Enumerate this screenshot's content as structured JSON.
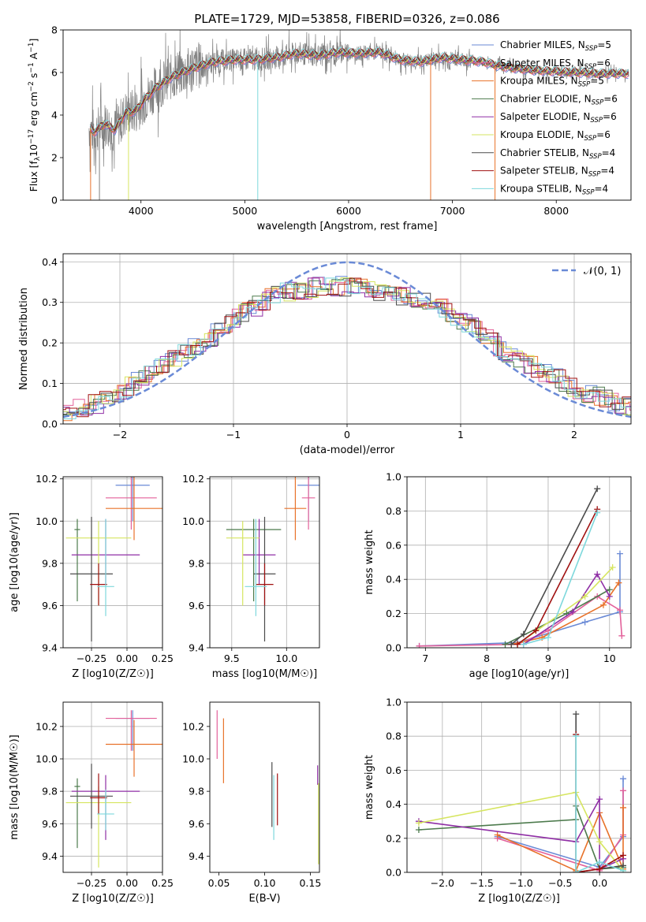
{
  "figure": {
    "title": "PLATE=1729, MJD=53858, FIBERID=0326, z=0.086"
  },
  "chart_data": [
    {
      "id": "spectrum",
      "type": "line",
      "xlabel": "wavelength [Angstrom, rest frame]",
      "ylabel": "Flux [fλ10⁻¹⁷ erg cm⁻² s⁻¹ A⁻¹]",
      "xlim": [
        3250,
        8720
      ],
      "ylim": [
        0,
        8
      ],
      "xticks": [
        4000,
        5000,
        6000,
        7000,
        8000
      ],
      "yticks": [
        0,
        2,
        4,
        6,
        8
      ],
      "legend_position": "upper-right",
      "continuum": {
        "x": [
          3500,
          3550,
          3650,
          3750,
          3850,
          3950,
          4050,
          4150,
          4300,
          4500,
          4700,
          4900,
          5100,
          5300,
          5500,
          5700,
          5900,
          6100,
          6300,
          6500,
          6700,
          6900,
          7100,
          7300,
          7450,
          7600,
          7800,
          8000,
          8200,
          8400,
          8700
        ],
        "y": [
          3.4,
          3.2,
          3.6,
          3.3,
          4.1,
          4.2,
          4.8,
          5.3,
          5.8,
          6.2,
          6.5,
          6.6,
          6.6,
          6.7,
          6.9,
          6.8,
          6.95,
          6.9,
          6.95,
          6.6,
          6.5,
          6.7,
          6.6,
          6.5,
          6.3,
          6.2,
          6.1,
          6.05,
          6.0,
          5.95,
          5.95
        ]
      },
      "series": [
        {
          "name": "Chabrier MILES, N_SSP=5",
          "color": "#6a8ad6"
        },
        {
          "name": "Salpeter MILES, N_SSP=6",
          "color": "#e3609a"
        },
        {
          "name": "Kroupa MILES, N_SSP=5",
          "color": "#e8722a"
        },
        {
          "name": "Chabrier ELODIE, N_SSP=6",
          "color": "#4c7a4c"
        },
        {
          "name": "Salpeter ELODIE, N_SSP=6",
          "color": "#8f2fa5"
        },
        {
          "name": "Kroupa ELODIE, N_SSP=6",
          "color": "#d6e560"
        },
        {
          "name": "Chabrier STELIB, N_SSP=4",
          "color": "#4b4b4b"
        },
        {
          "name": "Salpeter STELIB, N_SSP=4",
          "color": "#a01010"
        },
        {
          "name": "Kroupa STELIB, N_SSP=4",
          "color": "#7ed8dc"
        }
      ]
    },
    {
      "id": "residuals",
      "type": "histogram",
      "xlabel": "(data-model)/error",
      "ylabel": "Normed distribution",
      "xlim": [
        -2.5,
        2.5
      ],
      "ylim": [
        0,
        0.42
      ],
      "xticks": [
        -2,
        -1,
        0,
        1,
        2
      ],
      "yticks": [
        0.0,
        0.1,
        0.2,
        0.3,
        0.4
      ],
      "grid": true,
      "legend_position": "upper-right",
      "reference_curve": {
        "name": "N(0,1)",
        "type": "gaussian",
        "mean": 0,
        "sigma": 1,
        "color": "#6a8ad6"
      },
      "envelope": [
        [
          -2.5,
          0.03
        ],
        [
          -2.2,
          0.05
        ],
        [
          -2.0,
          0.08
        ],
        [
          -1.8,
          0.11
        ],
        [
          -1.6,
          0.15
        ],
        [
          -1.4,
          0.18
        ],
        [
          -1.2,
          0.21
        ],
        [
          -1.0,
          0.26
        ],
        [
          -0.8,
          0.29
        ],
        [
          -0.6,
          0.32
        ],
        [
          -0.4,
          0.33
        ],
        [
          -0.2,
          0.34
        ],
        [
          0.0,
          0.34
        ],
        [
          0.2,
          0.33
        ],
        [
          0.4,
          0.32
        ],
        [
          0.6,
          0.31
        ],
        [
          0.8,
          0.29
        ],
        [
          1.0,
          0.26
        ],
        [
          1.2,
          0.22
        ],
        [
          1.4,
          0.18
        ],
        [
          1.6,
          0.15
        ],
        [
          1.8,
          0.12
        ],
        [
          2.0,
          0.09
        ],
        [
          2.2,
          0.07
        ],
        [
          2.5,
          0.04
        ]
      ]
    },
    {
      "id": "age-vs-Z",
      "type": "errorbar",
      "xlabel": "Z [log10(Z/Z☉)]",
      "ylabel": "age  [log10(age/yr)]",
      "xlim": [
        -0.45,
        0.25
      ],
      "ylim": [
        9.4,
        10.21
      ],
      "xticks": [
        -0.25,
        0.0,
        0.25
      ],
      "yticks": [
        9.4,
        9.6,
        9.8,
        10.0,
        10.2
      ],
      "grid": true,
      "points": [
        {
          "series": 0,
          "x": 0.04,
          "xerr": 0.12,
          "y": 10.17,
          "yerr": [
            0.17,
            0.04
          ]
        },
        {
          "series": 1,
          "x": 0.03,
          "xerr": 0.18,
          "y": 10.11,
          "yerr": [
            0.15,
            0.1
          ]
        },
        {
          "series": 2,
          "x": 0.05,
          "xerr": 0.2,
          "y": 10.06,
          "yerr": [
            0.15,
            0.15
          ]
        },
        {
          "series": 3,
          "x": -0.35,
          "xerr": 0.02,
          "y": 9.96,
          "yerr": [
            0.34,
            0.05
          ]
        },
        {
          "series": 4,
          "x": -0.15,
          "xerr": 0.24,
          "y": 9.84,
          "yerr": [
            0.14,
            0.17
          ]
        },
        {
          "series": 5,
          "x": -0.2,
          "xerr": 0.23,
          "y": 9.92,
          "yerr": [
            0.32,
            0.08
          ]
        },
        {
          "series": 6,
          "x": -0.25,
          "xerr": 0.15,
          "y": 9.75,
          "yerr": [
            0.32,
            0.27
          ]
        },
        {
          "series": 7,
          "x": -0.2,
          "xerr": 0.06,
          "y": 9.7,
          "yerr": [
            0.1,
            0.1
          ]
        },
        {
          "series": 8,
          "x": -0.15,
          "xerr": 0.06,
          "y": 9.69,
          "yerr": [
            0.14,
            0.32
          ]
        }
      ]
    },
    {
      "id": "age-vs-mass",
      "type": "errorbar",
      "xlabel": "mass [log10(M/M☉)]",
      "ylabel": "",
      "xlim": [
        9.3,
        10.3
      ],
      "ylim": [
        9.4,
        10.21
      ],
      "xticks": [
        9.5,
        10.0
      ],
      "yticks": [
        9.4,
        9.6,
        9.8,
        10.0,
        10.2
      ],
      "grid": true,
      "points": [
        {
          "series": 0,
          "x": 10.2,
          "xerr": 0.1,
          "y": 10.17,
          "yerr": [
            0.17,
            0.04
          ]
        },
        {
          "series": 1,
          "x": 10.2,
          "xerr": 0.06,
          "y": 10.11,
          "yerr": [
            0.15,
            0.1
          ]
        },
        {
          "series": 2,
          "x": 10.08,
          "xerr": 0.1,
          "y": 10.06,
          "yerr": [
            0.15,
            0.15
          ]
        },
        {
          "series": 3,
          "x": 9.7,
          "xerr": 0.25,
          "y": 9.96,
          "yerr": [
            0.34,
            0.05
          ]
        },
        {
          "series": 4,
          "x": 9.75,
          "xerr": 0.15,
          "y": 9.84,
          "yerr": [
            0.14,
            0.17
          ]
        },
        {
          "series": 5,
          "x": 9.6,
          "xerr": 0.15,
          "y": 9.92,
          "yerr": [
            0.32,
            0.08
          ]
        },
        {
          "series": 6,
          "x": 9.8,
          "xerr": 0.1,
          "y": 9.75,
          "yerr": [
            0.32,
            0.27
          ]
        },
        {
          "series": 7,
          "x": 9.8,
          "xerr": 0.08,
          "y": 9.7,
          "yerr": [
            0.1,
            0.1
          ]
        },
        {
          "series": 8,
          "x": 9.72,
          "xerr": 0.1,
          "y": 9.69,
          "yerr": [
            0.14,
            0.32
          ]
        }
      ]
    },
    {
      "id": "massweight-vs-age",
      "type": "line",
      "xlabel": "age  [log10(age/yr)]",
      "ylabel": "mass weight",
      "xlim": [
        6.7,
        10.35
      ],
      "ylim": [
        0,
        1.0
      ],
      "xticks": [
        7,
        8,
        9,
        10
      ],
      "yticks": [
        0.0,
        0.2,
        0.4,
        0.6,
        0.8,
        1.0
      ],
      "grid": true,
      "series": [
        {
          "series": 0,
          "x": [
            6.9,
            8.5,
            9.6,
            10.17,
            10.17
          ],
          "y": [
            0.01,
            0.03,
            0.15,
            0.21,
            0.55
          ]
        },
        {
          "series": 1,
          "x": [
            6.9,
            8.5,
            9.0,
            9.8,
            10.17,
            10.2
          ],
          "y": [
            0.01,
            0.02,
            0.1,
            0.3,
            0.22,
            0.07
          ]
        },
        {
          "series": 2,
          "x": [
            8.4,
            8.9,
            9.9,
            10.15
          ],
          "y": [
            0.02,
            0.06,
            0.25,
            0.38
          ]
        },
        {
          "series": 3,
          "x": [
            8.3,
            9.3,
            10.0
          ],
          "y": [
            0.02,
            0.2,
            0.34
          ]
        },
        {
          "series": 4,
          "x": [
            8.6,
            9.4,
            9.8,
            10.0
          ],
          "y": [
            0.02,
            0.21,
            0.43,
            0.3
          ]
        },
        {
          "series": 5,
          "x": [
            8.5,
            9.6,
            10.05
          ],
          "y": [
            0.02,
            0.3,
            0.47
          ]
        },
        {
          "series": 6,
          "x": [
            8.4,
            8.6,
            9.8
          ],
          "y": [
            0.02,
            0.08,
            0.93
          ]
        },
        {
          "series": 7,
          "x": [
            8.5,
            8.8,
            9.8
          ],
          "y": [
            0.02,
            0.1,
            0.81
          ]
        },
        {
          "series": 8,
          "x": [
            8.6,
            9.0,
            9.8
          ],
          "y": [
            0.02,
            0.06,
            0.79
          ]
        }
      ]
    },
    {
      "id": "mass-vs-Z",
      "type": "errorbar",
      "xlabel": "Z [log10(Z/Z☉)]",
      "ylabel": "mass [log10(M/M☉)]",
      "xlim": [
        -0.45,
        0.25
      ],
      "ylim": [
        9.3,
        10.35
      ],
      "xticks": [
        -0.25,
        0.0,
        0.25
      ],
      "yticks": [
        9.4,
        9.6,
        9.8,
        10.0,
        10.2
      ],
      "grid": true,
      "points": [
        {
          "series": 0,
          "x": 0.04,
          "xerr": 0.12,
          "y": 10.25,
          "yerr": [
            0.2,
            0.05
          ]
        },
        {
          "series": 1,
          "x": 0.03,
          "xerr": 0.18,
          "y": 10.25,
          "yerr": [
            0.2,
            0.05
          ]
        },
        {
          "series": 2,
          "x": 0.05,
          "xerr": 0.2,
          "y": 10.09,
          "yerr": [
            0.2,
            0.15
          ]
        },
        {
          "series": 3,
          "x": -0.35,
          "xerr": 0.02,
          "y": 9.83,
          "yerr": [
            0.38,
            0.05
          ]
        },
        {
          "series": 4,
          "x": -0.15,
          "xerr": 0.24,
          "y": 9.8,
          "yerr": [
            0.3,
            0.1
          ]
        },
        {
          "series": 5,
          "x": -0.2,
          "xerr": 0.23,
          "y": 9.73,
          "yerr": [
            0.4,
            0.1
          ]
        },
        {
          "series": 6,
          "x": -0.25,
          "xerr": 0.15,
          "y": 9.77,
          "yerr": [
            0.2,
            0.2
          ]
        },
        {
          "series": 7,
          "x": -0.2,
          "xerr": 0.06,
          "y": 9.76,
          "yerr": [
            0.1,
            0.15
          ]
        },
        {
          "series": 8,
          "x": -0.15,
          "xerr": 0.06,
          "y": 9.66,
          "yerr": [
            0.1,
            0.15
          ]
        }
      ]
    },
    {
      "id": "mass-vs-ebv",
      "type": "errorbar",
      "xlabel": "E(B-V)",
      "ylabel": "",
      "xlim": [
        0.04,
        0.16
      ],
      "ylim": [
        9.3,
        10.35
      ],
      "xticks": [
        0.05,
        0.1,
        0.15
      ],
      "yticks": [
        9.4,
        9.6,
        9.8,
        10.0,
        10.2
      ],
      "grid": false,
      "points": [
        {
          "series": 1,
          "x": 0.048,
          "y": 10.15,
          "yerr": [
            0.15,
            0.15
          ]
        },
        {
          "series": 2,
          "x": 0.055,
          "y": 10.05,
          "yerr": [
            0.2,
            0.2
          ]
        },
        {
          "series": 6,
          "x": 0.108,
          "y": 9.78,
          "yerr": [
            0.2,
            0.2
          ]
        },
        {
          "series": 8,
          "x": 0.11,
          "y": 9.7,
          "yerr": [
            0.2,
            0.2
          ]
        },
        {
          "series": 7,
          "x": 0.114,
          "y": 9.75,
          "yerr": [
            0.16,
            0.16
          ]
        },
        {
          "series": 4,
          "x": 0.158,
          "y": 9.9,
          "yerr": [
            0.06,
            0.06
          ]
        },
        {
          "series": 5,
          "x": 0.159,
          "y": 9.6,
          "yerr": [
            0.25,
            0.25
          ]
        }
      ]
    },
    {
      "id": "massweight-vs-Z",
      "type": "line",
      "xlabel": "Z [log10(Z/Z☉)]",
      "ylabel": "mass weight",
      "xlim": [
        -2.45,
        0.4
      ],
      "ylim": [
        0,
        1.0
      ],
      "xticks": [
        -2.0,
        -1.5,
        -1.0,
        -0.5,
        0.0
      ],
      "yticks": [
        0.0,
        0.2,
        0.4,
        0.6,
        0.8,
        1.0
      ],
      "grid": true,
      "series": [
        {
          "series": 0,
          "x": [
            -1.3,
            0.0,
            0.3,
            0.3
          ],
          "y": [
            0.21,
            0.03,
            0.21,
            0.55
          ]
        },
        {
          "series": 1,
          "x": [
            -1.3,
            0.0,
            0.3,
            0.3
          ],
          "y": [
            0.2,
            0.01,
            0.22,
            0.48
          ]
        },
        {
          "series": 2,
          "x": [
            -1.3,
            -0.3,
            0.0,
            0.3,
            0.3
          ],
          "y": [
            0.22,
            0.01,
            0.35,
            0.02,
            0.38
          ]
        },
        {
          "series": 3,
          "x": [
            -2.3,
            -0.3,
            -0.3,
            0.0,
            0.3
          ],
          "y": [
            0.25,
            0.31,
            0.39,
            0.02,
            0.03
          ]
        },
        {
          "series": 4,
          "x": [
            -2.3,
            -0.3,
            0.0,
            0.0,
            0.3
          ],
          "y": [
            0.3,
            0.18,
            0.43,
            0.02,
            0.08
          ]
        },
        {
          "series": 5,
          "x": [
            -2.3,
            -0.3,
            0.0,
            0.3
          ],
          "y": [
            0.29,
            0.47,
            0.18,
            0.01
          ]
        },
        {
          "series": 6,
          "x": [
            -0.3,
            -0.3,
            0.0,
            0.3
          ],
          "y": [
            0.93,
            0.0,
            0.02,
            0.04
          ]
        },
        {
          "series": 7,
          "x": [
            -0.3,
            -0.3,
            0.0,
            0.3
          ],
          "y": [
            0.81,
            0.0,
            0.02,
            0.1
          ]
        },
        {
          "series": 8,
          "x": [
            -0.3,
            -0.3,
            0.0,
            0.3
          ],
          "y": [
            0.8,
            0.0,
            0.06,
            0.01
          ]
        }
      ]
    }
  ],
  "axis_labels": {
    "spectrum_ylabel_main": "Flux [f",
    "spectrum_ylabel_sub": "λ",
    "spectrum_ylabel_rest": "10",
    "spectrum_ylabel_sup1": "−17",
    "spectrum_ylabel_mid": " erg cm",
    "spectrum_ylabel_sup2": "−2",
    "spectrum_ylabel_s": " s",
    "spectrum_ylabel_sup3": "−1",
    "spectrum_ylabel_a": " A",
    "spectrum_ylabel_sup4": "−1",
    "spectrum_ylabel_end": "]",
    "gauss_legend": "𝒩(0, 1)"
  },
  "legend_parts": [
    {
      "pre": "Chabrier MILES, N",
      "sub": "SSP",
      "post": "=5"
    },
    {
      "pre": "Salpeter MILES, N",
      "sub": "SSP",
      "post": "=6"
    },
    {
      "pre": "Kroupa MILES, N",
      "sub": "SSP",
      "post": "=5"
    },
    {
      "pre": "Chabrier ELODIE, N",
      "sub": "SSP",
      "post": "=6"
    },
    {
      "pre": "Salpeter ELODIE, N",
      "sub": "SSP",
      "post": "=6"
    },
    {
      "pre": "Kroupa ELODIE, N",
      "sub": "SSP",
      "post": "=6"
    },
    {
      "pre": "Chabrier STELIB, N",
      "sub": "SSP",
      "post": "=4"
    },
    {
      "pre": "Salpeter STELIB, N",
      "sub": "SSP",
      "post": "=4"
    },
    {
      "pre": "Kroupa STELIB, N",
      "sub": "SSP",
      "post": "=4"
    }
  ]
}
